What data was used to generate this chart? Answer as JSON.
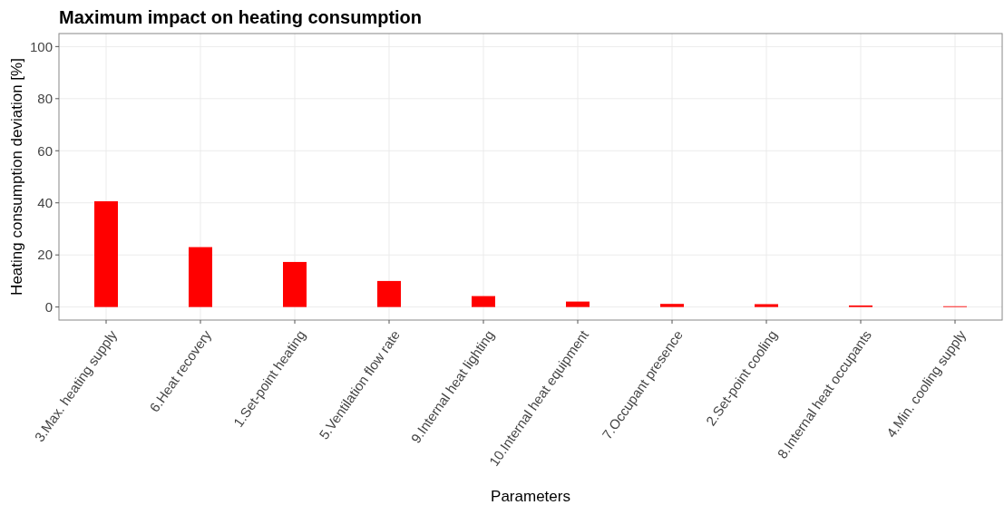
{
  "chart_data": {
    "type": "bar",
    "title": "Maximum impact on heating consumption",
    "xlabel": "Parameters",
    "ylabel": "Heating consumption deviation [%]",
    "categories": [
      "3.Max. heating supply",
      "6.Heat recovery",
      "1.Set-point heating",
      "5.Ventilation flow rate",
      "9.Internal heat lighting",
      "10.Internal heat equipment",
      "7.Occupant presence",
      "2.Set-point cooling",
      "8.Internal heat occupants",
      "4.Min. cooling supply"
    ],
    "values": [
      40.6,
      23.0,
      17.3,
      10.0,
      4.2,
      2.1,
      1.2,
      1.1,
      0.6,
      0.3
    ],
    "color": "#ff0000",
    "ylim": [
      -5,
      105
    ],
    "yticks": [
      0,
      20,
      40,
      60,
      80,
      100
    ],
    "grid": true
  }
}
